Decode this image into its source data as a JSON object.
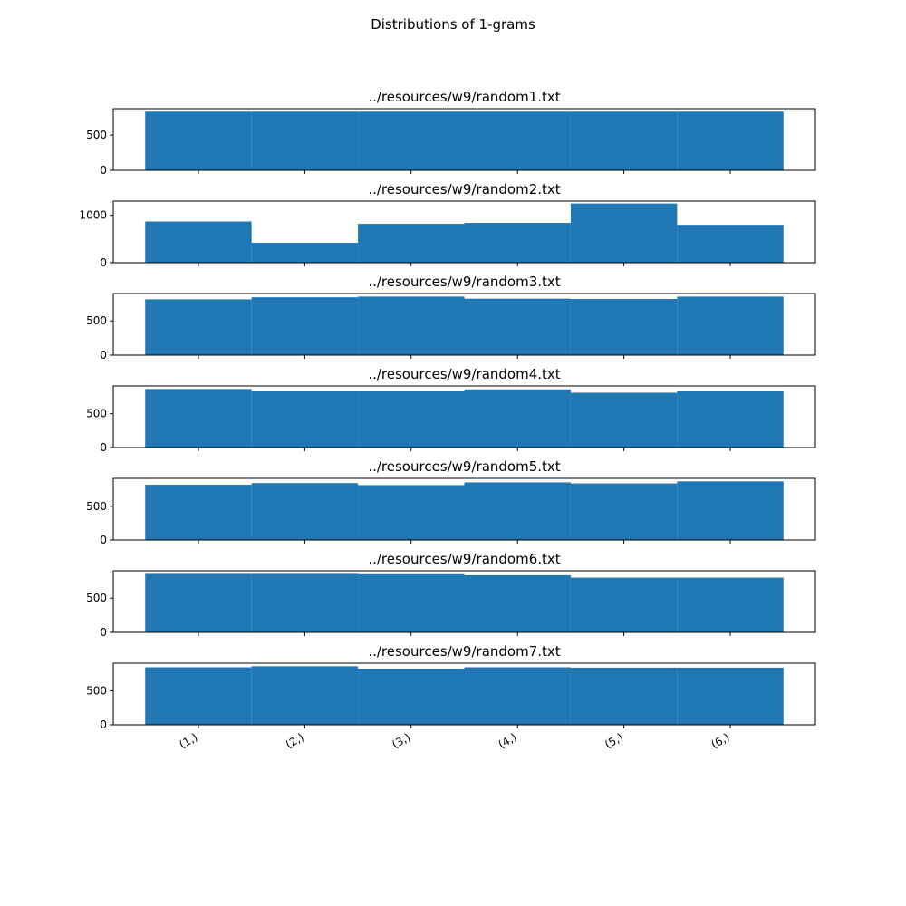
{
  "figure": {
    "title": "Distributions of 1-grams",
    "bar_color": "#1f77b4"
  },
  "chart_data": {
    "type": "bar",
    "categories": [
      "(1,)",
      "(2,)",
      "(3,)",
      "(4,)",
      "(5,)",
      "(6,)"
    ],
    "xlabel": "",
    "ylabel": "",
    "grid": false,
    "legend": "none",
    "subplots": [
      {
        "title": "../resources/w9/random1.txt",
        "values": [
          833,
          833,
          833,
          833,
          833,
          833
        ],
        "ylim": [
          0,
          875
        ],
        "yticks": [
          0,
          500
        ]
      },
      {
        "title": "../resources/w9/random2.txt",
        "values": [
          870,
          420,
          820,
          840,
          1250,
          800
        ],
        "ylim": [
          0,
          1300
        ],
        "yticks": [
          0,
          1000
        ]
      },
      {
        "title": "../resources/w9/random3.txt",
        "values": [
          815,
          845,
          855,
          825,
          820,
          855
        ],
        "ylim": [
          0,
          900
        ],
        "yticks": [
          0,
          500
        ]
      },
      {
        "title": "../resources/w9/random4.txt",
        "values": [
          865,
          830,
          830,
          860,
          810,
          830
        ],
        "ylim": [
          0,
          910
        ],
        "yticks": [
          0,
          500
        ]
      },
      {
        "title": "../resources/w9/random5.txt",
        "values": [
          820,
          845,
          815,
          855,
          840,
          870
        ],
        "ylim": [
          0,
          915
        ],
        "yticks": [
          0,
          500
        ]
      },
      {
        "title": "../resources/w9/random6.txt",
        "values": [
          855,
          855,
          850,
          835,
          800,
          800
        ],
        "ylim": [
          0,
          900
        ],
        "yticks": [
          0,
          500
        ]
      },
      {
        "title": "../resources/w9/random7.txt",
        "values": [
          845,
          860,
          825,
          845,
          840,
          840
        ],
        "ylim": [
          0,
          905
        ],
        "yticks": [
          0,
          500
        ]
      }
    ]
  }
}
